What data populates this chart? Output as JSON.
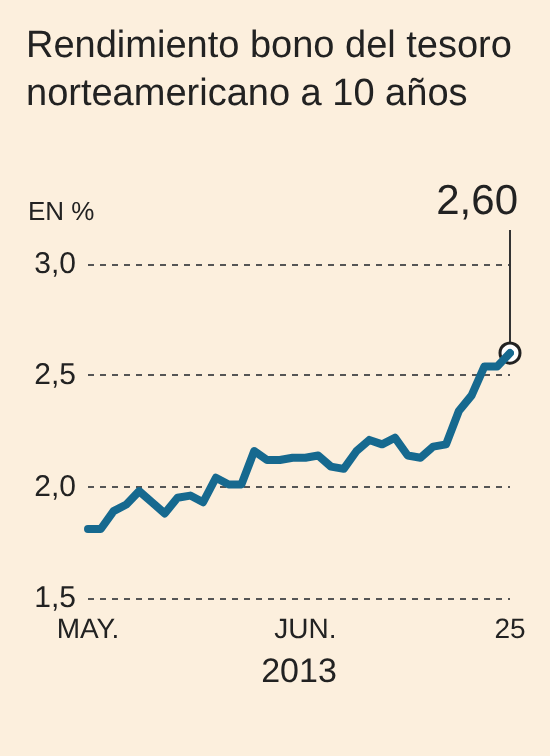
{
  "chart_data": {
    "type": "line",
    "title": "Rendimiento bono del tesoro norteamericano a 10 años",
    "ylabel": "EN %",
    "xlabel": "2013",
    "categories": [
      "MAY.",
      null,
      null,
      null,
      null,
      null,
      null,
      null,
      null,
      null,
      null,
      null,
      null,
      null,
      null,
      null,
      null,
      "JUN.",
      null,
      null,
      null,
      null,
      null,
      null,
      null,
      null,
      null,
      null,
      null,
      null,
      null,
      null,
      null,
      "25"
    ],
    "series": [
      {
        "color": "#16698f",
        "values": [
          1.81,
          1.81,
          1.89,
          1.92,
          1.98,
          1.93,
          1.88,
          1.95,
          1.96,
          1.93,
          2.04,
          2.01,
          2.01,
          2.16,
          2.12,
          2.12,
          2.13,
          2.13,
          2.14,
          2.09,
          2.08,
          2.16,
          2.21,
          2.19,
          2.22,
          2.14,
          2.13,
          2.18,
          2.19,
          2.34,
          2.41,
          2.54,
          2.54,
          2.6
        ]
      }
    ],
    "ylim": [
      1.5,
      3.0
    ],
    "yticks": [
      {
        "value": 1.5,
        "label": "1,5"
      },
      {
        "value": 2.0,
        "label": "2,0"
      },
      {
        "value": 2.5,
        "label": "2,5"
      },
      {
        "value": 3.0,
        "label": "3,0"
      }
    ],
    "grid": "y",
    "line_style": "solid",
    "annotations": [
      {
        "text": "2,60",
        "x": "25",
        "y": 2.6
      }
    ]
  }
}
